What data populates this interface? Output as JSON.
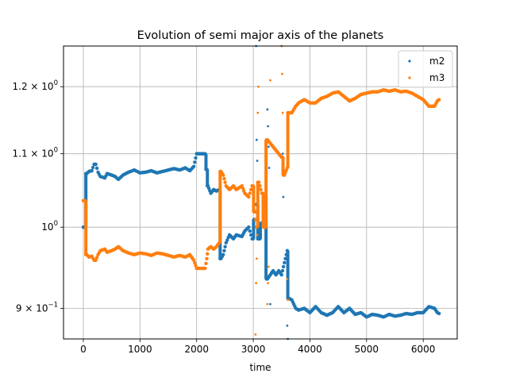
{
  "chart_data": {
    "type": "scatter",
    "title": "Evolution of semi major axis of the planets",
    "xlabel": "time",
    "ylabel": "",
    "xlim": [
      -350,
      6600
    ],
    "ylim": [
      0.865,
      1.265
    ],
    "yscale": "log",
    "grid": true,
    "legend_position": "top-right",
    "x_ticks": [
      {
        "value": 0,
        "label": "0"
      },
      {
        "value": 1000,
        "label": "1000"
      },
      {
        "value": 2000,
        "label": "2000"
      },
      {
        "value": 3000,
        "label": "3000"
      },
      {
        "value": 4000,
        "label": "4000"
      },
      {
        "value": 5000,
        "label": "5000"
      },
      {
        "value": 6000,
        "label": "6000"
      }
    ],
    "y_ticks": [
      {
        "value": 0.9,
        "label_base": "9 × 10",
        "label_exp": "−1"
      },
      {
        "value": 1.0,
        "label_base": "10",
        "label_exp": "0"
      },
      {
        "value": 1.1,
        "label_base": "1.1 × 10",
        "label_exp": "0"
      },
      {
        "value": 1.2,
        "label_base": "1.2 × 10",
        "label_exp": "0"
      }
    ],
    "series": [
      {
        "name": "m2",
        "color": "#1f77b4",
        "points": [
          [
            0,
            1.0
          ],
          [
            30,
            1.0
          ],
          [
            60,
            1.072
          ],
          [
            100,
            1.075
          ],
          [
            150,
            1.076
          ],
          [
            190,
            1.085
          ],
          [
            220,
            1.085
          ],
          [
            260,
            1.074
          ],
          [
            300,
            1.068
          ],
          [
            380,
            1.066
          ],
          [
            420,
            1.072
          ],
          [
            500,
            1.07
          ],
          [
            560,
            1.068
          ],
          [
            620,
            1.064
          ],
          [
            700,
            1.07
          ],
          [
            800,
            1.074
          ],
          [
            900,
            1.077
          ],
          [
            1000,
            1.073
          ],
          [
            1100,
            1.074
          ],
          [
            1200,
            1.076
          ],
          [
            1300,
            1.073
          ],
          [
            1400,
            1.075
          ],
          [
            1500,
            1.077
          ],
          [
            1600,
            1.079
          ],
          [
            1700,
            1.077
          ],
          [
            1800,
            1.08
          ],
          [
            1880,
            1.076
          ],
          [
            1950,
            1.082
          ],
          [
            2000,
            1.1
          ],
          [
            2100,
            1.1
          ],
          [
            2150,
            1.1
          ],
          [
            2180,
            1.078
          ],
          [
            2200,
            1.055
          ],
          [
            2250,
            1.045
          ],
          [
            2300,
            1.05
          ],
          [
            2350,
            1.048
          ],
          [
            2400,
            1.05
          ],
          [
            2430,
            0.96
          ],
          [
            2470,
            0.965
          ],
          [
            2520,
            0.98
          ],
          [
            2580,
            0.99
          ],
          [
            2650,
            0.985
          ],
          [
            2700,
            0.99
          ],
          [
            2800,
            0.988
          ],
          [
            2850,
            0.995
          ],
          [
            2920,
            1.0
          ],
          [
            2980,
            0.985
          ],
          [
            3030,
            1.01
          ],
          [
            3060,
            1.03
          ],
          [
            3100,
            0.985
          ],
          [
            3150,
            1.005
          ],
          [
            3200,
            1.04
          ],
          [
            3250,
            0.935
          ],
          [
            3300,
            0.94
          ],
          [
            3350,
            0.945
          ],
          [
            3400,
            0.94
          ],
          [
            3450,
            0.945
          ],
          [
            3500,
            0.94
          ],
          [
            3550,
            0.955
          ],
          [
            3600,
            0.97
          ],
          [
            3620,
            0.912
          ],
          [
            3680,
            0.91
          ],
          [
            3750,
            0.9
          ],
          [
            3800,
            0.898
          ],
          [
            3900,
            0.9
          ],
          [
            4000,
            0.895
          ],
          [
            4100,
            0.902
          ],
          [
            4200,
            0.895
          ],
          [
            4300,
            0.892
          ],
          [
            4400,
            0.895
          ],
          [
            4500,
            0.902
          ],
          [
            4600,
            0.895
          ],
          [
            4700,
            0.9
          ],
          [
            4800,
            0.893
          ],
          [
            4900,
            0.895
          ],
          [
            5000,
            0.89
          ],
          [
            5100,
            0.893
          ],
          [
            5200,
            0.892
          ],
          [
            5300,
            0.89
          ],
          [
            5400,
            0.893
          ],
          [
            5500,
            0.891
          ],
          [
            5600,
            0.892
          ],
          [
            5700,
            0.894
          ],
          [
            5800,
            0.893
          ],
          [
            5900,
            0.895
          ],
          [
            6000,
            0.895
          ],
          [
            6100,
            0.902
          ],
          [
            6200,
            0.9
          ],
          [
            6250,
            0.895
          ],
          [
            6280,
            0.894
          ]
        ],
        "outliers": [
          [
            3050,
            1.265
          ],
          [
            3060,
            1.12
          ],
          [
            3070,
            1.09
          ],
          [
            3080,
            1.05
          ],
          [
            3250,
            1.165
          ],
          [
            3260,
            1.14
          ],
          [
            3270,
            1.11
          ],
          [
            3280,
            1.08
          ],
          [
            3500,
            1.265
          ],
          [
            3520,
            1.1
          ],
          [
            3530,
            1.04
          ],
          [
            3600,
            0.88
          ],
          [
            3610,
            0.865
          ],
          [
            3300,
            0.905
          ]
        ]
      },
      {
        "name": "m3",
        "color": "#ff7f0e",
        "points": [
          [
            0,
            1.035
          ],
          [
            30,
            1.035
          ],
          [
            60,
            0.965
          ],
          [
            100,
            0.962
          ],
          [
            150,
            0.963
          ],
          [
            190,
            0.958
          ],
          [
            220,
            0.958
          ],
          [
            260,
            0.965
          ],
          [
            300,
            0.97
          ],
          [
            380,
            0.972
          ],
          [
            420,
            0.968
          ],
          [
            500,
            0.97
          ],
          [
            560,
            0.972
          ],
          [
            620,
            0.975
          ],
          [
            700,
            0.97
          ],
          [
            800,
            0.967
          ],
          [
            900,
            0.965
          ],
          [
            1000,
            0.967
          ],
          [
            1100,
            0.966
          ],
          [
            1200,
            0.964
          ],
          [
            1300,
            0.967
          ],
          [
            1400,
            0.966
          ],
          [
            1500,
            0.964
          ],
          [
            1600,
            0.962
          ],
          [
            1700,
            0.964
          ],
          [
            1800,
            0.962
          ],
          [
            1880,
            0.965
          ],
          [
            1950,
            0.958
          ],
          [
            2000,
            0.948
          ],
          [
            2100,
            0.948
          ],
          [
            2150,
            0.948
          ],
          [
            2180,
            0.96
          ],
          [
            2200,
            0.972
          ],
          [
            2250,
            0.975
          ],
          [
            2300,
            0.972
          ],
          [
            2350,
            0.975
          ],
          [
            2400,
            0.98
          ],
          [
            2430,
            1.075
          ],
          [
            2470,
            1.07
          ],
          [
            2520,
            1.055
          ],
          [
            2580,
            1.05
          ],
          [
            2650,
            1.055
          ],
          [
            2700,
            1.05
          ],
          [
            2800,
            1.055
          ],
          [
            2850,
            1.045
          ],
          [
            2920,
            1.04
          ],
          [
            2980,
            1.055
          ],
          [
            3030,
            1.02
          ],
          [
            3060,
            1.0
          ],
          [
            3100,
            1.06
          ],
          [
            3150,
            1.045
          ],
          [
            3200,
            1.0
          ],
          [
            3250,
            1.12
          ],
          [
            3300,
            1.115
          ],
          [
            3350,
            1.11
          ],
          [
            3400,
            1.105
          ],
          [
            3450,
            1.1
          ],
          [
            3500,
            1.095
          ],
          [
            3550,
            1.07
          ],
          [
            3600,
            1.08
          ],
          [
            3620,
            1.16
          ],
          [
            3680,
            1.16
          ],
          [
            3750,
            1.17
          ],
          [
            3800,
            1.175
          ],
          [
            3900,
            1.18
          ],
          [
            4000,
            1.175
          ],
          [
            4100,
            1.175
          ],
          [
            4200,
            1.182
          ],
          [
            4300,
            1.185
          ],
          [
            4400,
            1.19
          ],
          [
            4500,
            1.192
          ],
          [
            4600,
            1.185
          ],
          [
            4700,
            1.178
          ],
          [
            4800,
            1.182
          ],
          [
            4900,
            1.188
          ],
          [
            5000,
            1.19
          ],
          [
            5100,
            1.192
          ],
          [
            5200,
            1.192
          ],
          [
            5300,
            1.195
          ],
          [
            5400,
            1.193
          ],
          [
            5500,
            1.195
          ],
          [
            5600,
            1.192
          ],
          [
            5700,
            1.193
          ],
          [
            5800,
            1.19
          ],
          [
            5900,
            1.185
          ],
          [
            6000,
            1.18
          ],
          [
            6100,
            1.17
          ],
          [
            6200,
            1.17
          ],
          [
            6250,
            1.178
          ],
          [
            6280,
            1.18
          ]
        ],
        "outliers": [
          [
            3040,
            0.87
          ],
          [
            3050,
            0.93
          ],
          [
            3060,
            0.96
          ],
          [
            3070,
            0.99
          ],
          [
            3080,
            1.16
          ],
          [
            3090,
            1.2
          ],
          [
            3250,
            0.905
          ],
          [
            3260,
            0.93
          ],
          [
            3270,
            0.95
          ],
          [
            3500,
            1.265
          ],
          [
            3510,
            1.22
          ],
          [
            3520,
            1.16
          ],
          [
            3600,
            0.935
          ],
          [
            3610,
            0.91
          ],
          [
            3300,
            1.21
          ]
        ]
      }
    ]
  }
}
